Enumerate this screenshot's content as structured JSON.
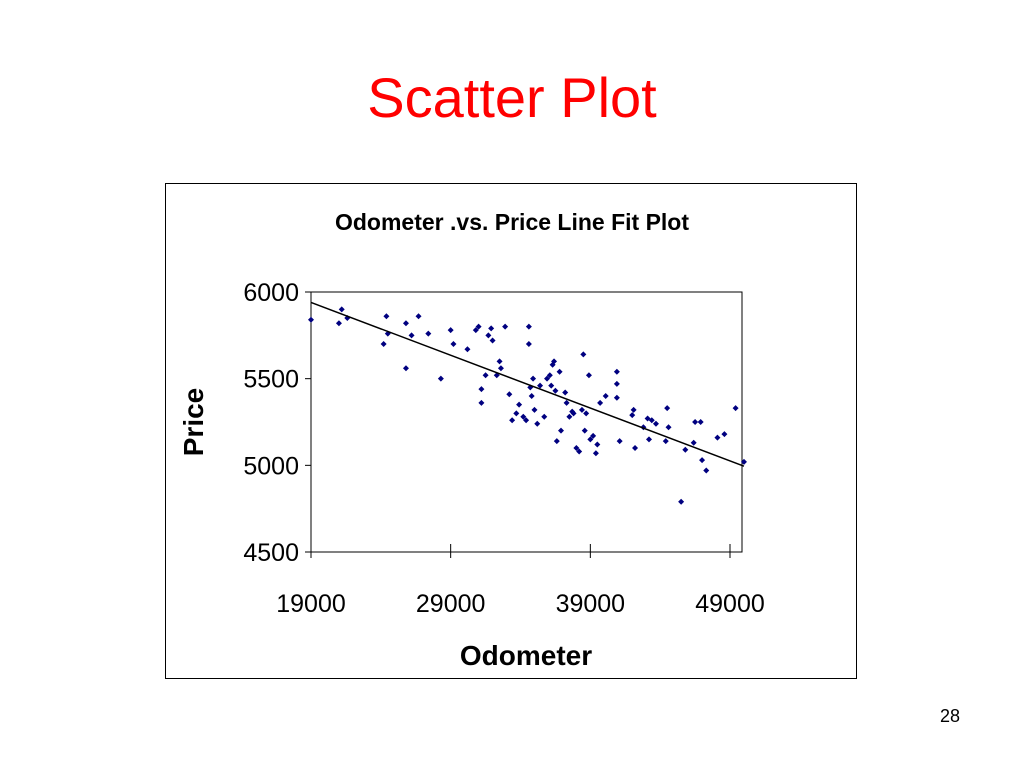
{
  "slide": {
    "title": "Scatter Plot",
    "page_number": "28",
    "title_color": "#ff0000"
  },
  "chart_data": {
    "type": "scatter",
    "title": "Odometer .vs. Price Line Fit  Plot",
    "xlabel": "Odometer",
    "ylabel": "Price",
    "xlim": [
      19000,
      50000
    ],
    "ylim": [
      4500,
      6000
    ],
    "x_ticks": [
      "19000",
      "29000",
      "39000",
      "49000"
    ],
    "y_ticks": [
      "6000",
      "5500",
      "5000",
      "4500"
    ],
    "grid": false,
    "legend": "none",
    "marker_color": "#000080",
    "line_color": "#000000",
    "series": [
      {
        "points": [
          [
            19000,
            5840
          ],
          [
            21000,
            5820
          ],
          [
            21200,
            5900
          ],
          [
            21600,
            5850
          ],
          [
            24200,
            5700
          ],
          [
            24400,
            5860
          ],
          [
            24500,
            5760
          ],
          [
            25800,
            5560
          ],
          [
            25800,
            5820
          ],
          [
            26200,
            5750
          ],
          [
            26700,
            5860
          ],
          [
            27400,
            5760
          ],
          [
            28300,
            5500
          ],
          [
            29000,
            5780
          ],
          [
            29200,
            5700
          ],
          [
            30200,
            5670
          ],
          [
            30800,
            5780
          ],
          [
            31000,
            5800
          ],
          [
            31200,
            5360
          ],
          [
            31200,
            5440
          ],
          [
            31500,
            5520
          ],
          [
            31700,
            5750
          ],
          [
            31900,
            5790
          ],
          [
            32000,
            5720
          ],
          [
            32300,
            5520
          ],
          [
            32500,
            5600
          ],
          [
            32600,
            5560
          ],
          [
            32900,
            5800
          ],
          [
            33200,
            5410
          ],
          [
            33400,
            5260
          ],
          [
            33700,
            5300
          ],
          [
            33900,
            5350
          ],
          [
            34200,
            5280
          ],
          [
            34400,
            5260
          ],
          [
            34600,
            5800
          ],
          [
            34600,
            5700
          ],
          [
            34700,
            5450
          ],
          [
            34800,
            5400
          ],
          [
            34900,
            5500
          ],
          [
            35000,
            5320
          ],
          [
            35200,
            5240
          ],
          [
            35400,
            5460
          ],
          [
            35700,
            5280
          ],
          [
            35900,
            5500
          ],
          [
            36100,
            5520
          ],
          [
            36200,
            5460
          ],
          [
            36300,
            5580
          ],
          [
            36400,
            5600
          ],
          [
            36500,
            5430
          ],
          [
            36600,
            5140
          ],
          [
            36800,
            5540
          ],
          [
            36900,
            5200
          ],
          [
            37200,
            5420
          ],
          [
            37300,
            5360
          ],
          [
            37500,
            5280
          ],
          [
            37700,
            5310
          ],
          [
            37800,
            5300
          ],
          [
            38000,
            5100
          ],
          [
            38200,
            5080
          ],
          [
            38400,
            5320
          ],
          [
            38500,
            5640
          ],
          [
            38600,
            5200
          ],
          [
            38700,
            5300
          ],
          [
            38900,
            5520
          ],
          [
            39000,
            5150
          ],
          [
            39200,
            5170
          ],
          [
            39400,
            5070
          ],
          [
            39500,
            5120
          ],
          [
            39700,
            5360
          ],
          [
            40100,
            5400
          ],
          [
            40900,
            5390
          ],
          [
            40900,
            5470
          ],
          [
            40900,
            5540
          ],
          [
            41100,
            5140
          ],
          [
            42000,
            5290
          ],
          [
            42100,
            5320
          ],
          [
            42200,
            5100
          ],
          [
            42800,
            5220
          ],
          [
            43100,
            5270
          ],
          [
            43200,
            5150
          ],
          [
            43400,
            5260
          ],
          [
            43700,
            5240
          ],
          [
            44400,
            5140
          ],
          [
            44500,
            5330
          ],
          [
            44600,
            5220
          ],
          [
            45500,
            4790
          ],
          [
            45800,
            5090
          ],
          [
            46400,
            5130
          ],
          [
            46500,
            5250
          ],
          [
            46900,
            5250
          ],
          [
            47000,
            5030
          ],
          [
            47300,
            4970
          ],
          [
            48100,
            5160
          ],
          [
            48600,
            5180
          ],
          [
            49400,
            5330
          ],
          [
            50000,
            5020
          ]
        ]
      }
    ],
    "fit_line": {
      "x": [
        19000,
        50000
      ],
      "y": [
        5940,
        4995
      ]
    }
  }
}
